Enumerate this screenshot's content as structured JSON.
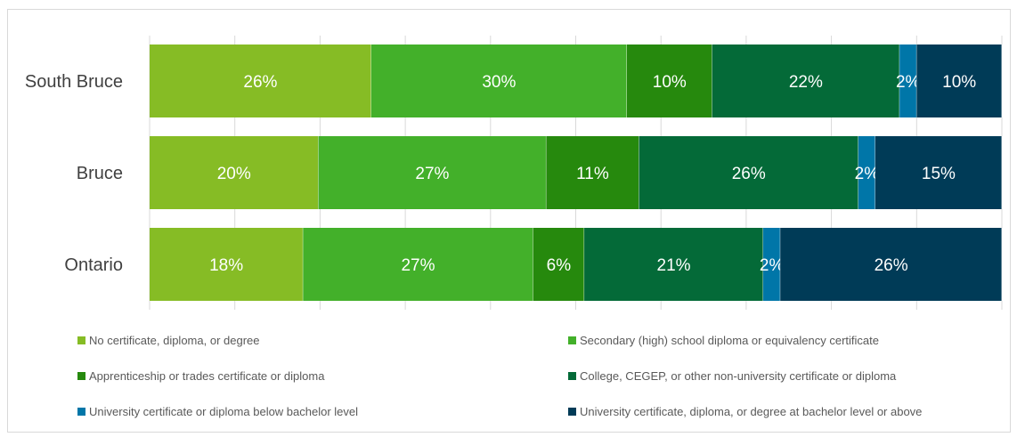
{
  "chart_data": {
    "type": "bar",
    "orientation": "horizontal",
    "stacked": true,
    "percent_stacked": true,
    "title": "",
    "xlabel": "",
    "ylabel": "",
    "xlim": [
      0,
      100
    ],
    "grid": true,
    "legend_position": "bottom",
    "categories": [
      "South Bruce",
      "Bruce",
      "Ontario"
    ],
    "series": [
      {
        "name": "No certificate, diploma, or degree",
        "color": "#86bc25",
        "values": [
          26,
          20,
          18
        ],
        "labels": [
          "26%",
          "20%",
          "18%"
        ]
      },
      {
        "name": "Secondary (high) school diploma or equivalency certificate",
        "color": "#43b02a",
        "values": [
          30,
          27,
          27
        ],
        "labels": [
          "30%",
          "27%",
          "27%"
        ]
      },
      {
        "name": "Apprenticeship or trades certificate or diploma",
        "color": "#26890d",
        "values": [
          10,
          11,
          6
        ],
        "labels": [
          "10%",
          "11%",
          "6%"
        ]
      },
      {
        "name": "College, CEGEP, or other non-university certificate or diploma",
        "color": "#046a38",
        "values": [
          22,
          26,
          21
        ],
        "labels": [
          "22%",
          "26%",
          "21%"
        ]
      },
      {
        "name": "University certificate or diploma below bachelor level",
        "color": "#0076a8",
        "values": [
          2,
          2,
          2
        ],
        "labels": [
          "2%",
          "2%",
          "2%"
        ]
      },
      {
        "name": "University certificate, diploma, or degree at bachelor level or above",
        "color": "#003b57",
        "values": [
          10,
          15,
          26
        ],
        "labels": [
          "10%",
          "15%",
          "26%"
        ]
      }
    ]
  }
}
